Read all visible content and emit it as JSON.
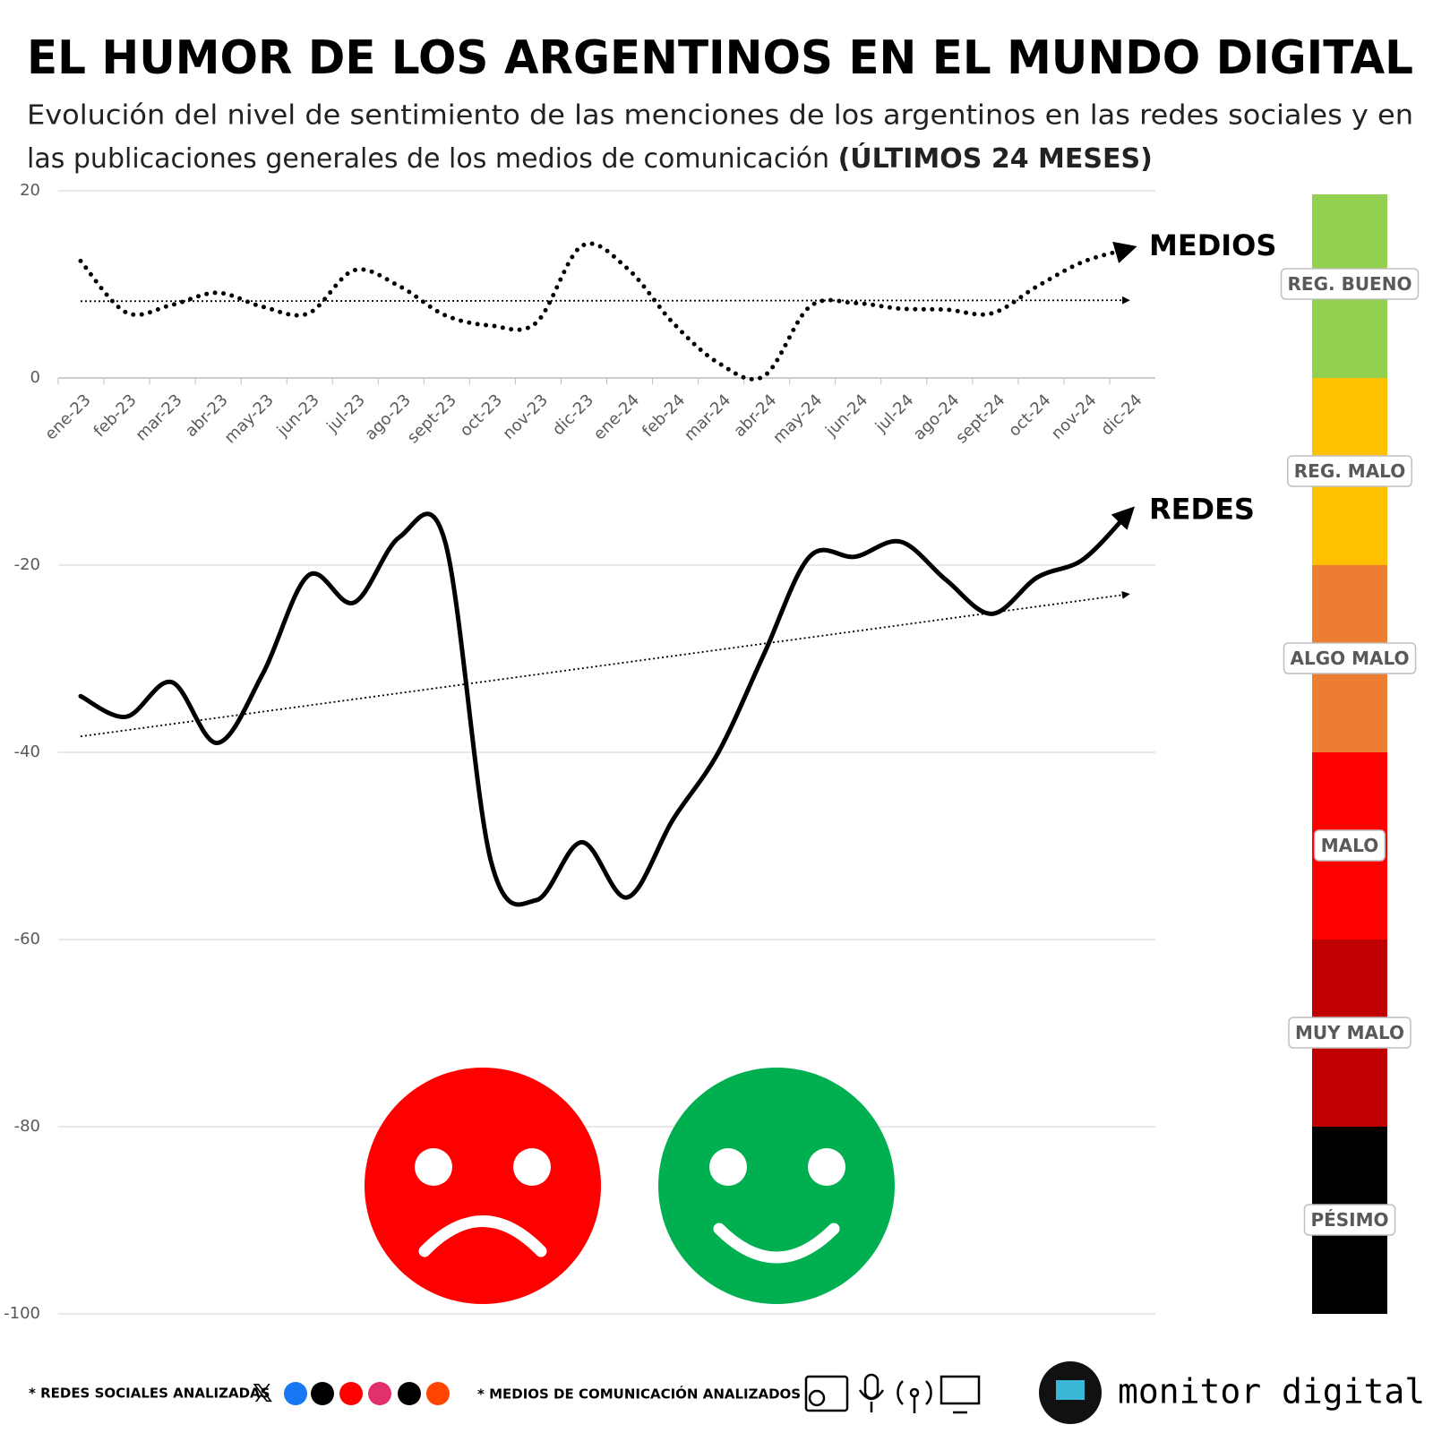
{
  "chart_data": {
    "type": "line",
    "title": "EL HUMOR DE LOS ARGENTINOS EN EL MUNDO DIGITAL",
    "subtitle_lines": [
      "Evolución del nivel de sentimiento de las menciones de los argentinos en las redes sociales y en",
      "las publicaciones generales de los medios de comunicación"
    ],
    "subtitle_emphasis": "(ÚLTIMOS 24 MESES)",
    "categories": [
      "ene-23",
      "feb-23",
      "mar-23",
      "abr-23",
      "may-23",
      "jun-23",
      "jul-23",
      "ago-23",
      "sept-23",
      "oct-23",
      "nov-23",
      "dic-23",
      "ene-24",
      "feb-24",
      "mar-24",
      "abr-24",
      "may-24",
      "jun-24",
      "jul-24",
      "ago-24",
      "sept-24",
      "oct-24",
      "nov-24",
      "dic-24"
    ],
    "series": [
      {
        "name": "MEDIOS",
        "color": "#000000",
        "style": "dotted",
        "values": [
          12.5,
          7.0,
          7.8,
          9.1,
          7.6,
          6.9,
          11.5,
          9.8,
          6.7,
          5.6,
          5.9,
          14.1,
          11.7,
          5.9,
          1.6,
          0.2,
          7.6,
          8.0,
          7.4,
          7.3,
          6.9,
          9.8,
          12.4,
          13.8
        ],
        "trend": [
          8.2,
          8.3
        ]
      },
      {
        "name": "REDES",
        "color": "#000000",
        "style": "solid",
        "values": [
          -34.0,
          -36.2,
          -32.5,
          -39.0,
          -31.6,
          -21.1,
          -24.0,
          -17.0,
          -17.5,
          -51.5,
          -55.8,
          -49.6,
          -55.5,
          -47.2,
          -40.0,
          -29.5,
          -19.1,
          -19.1,
          -17.5,
          -21.6,
          -25.2,
          -21.3,
          -19.4,
          -14.4
        ],
        "trend": [
          -38.3,
          -23.1
        ]
      }
    ],
    "ylim": [
      -100,
      20
    ],
    "yticks": [
      20,
      0,
      -20,
      -40,
      -60,
      -80,
      -100
    ],
    "grid": true,
    "scale": [
      {
        "label": "REG. BUENO",
        "color": "#92d050",
        "range": [
          20,
          0
        ]
      },
      {
        "label": "REG. MALO",
        "color": "#ffc000",
        "range": [
          0,
          -20
        ]
      },
      {
        "label": "ALGO MALO",
        "color": "#ed7d31",
        "range": [
          -20,
          -40
        ]
      },
      {
        "label": "MALO",
        "color": "#ff0000",
        "range": [
          -40,
          -60
        ]
      },
      {
        "label": "MUY MALO",
        "color": "#c00000",
        "range": [
          -60,
          -80
        ]
      },
      {
        "label": "PÉSIMO",
        "color": "#000000",
        "range": [
          -80,
          -100
        ]
      }
    ],
    "footer": {
      "social": "* REDES SOCIALES ANALIZADAS",
      "media": "* MEDIOS DE COMUNICACIÓN ANALIZADOS",
      "brand": "monitor digital"
    }
  }
}
